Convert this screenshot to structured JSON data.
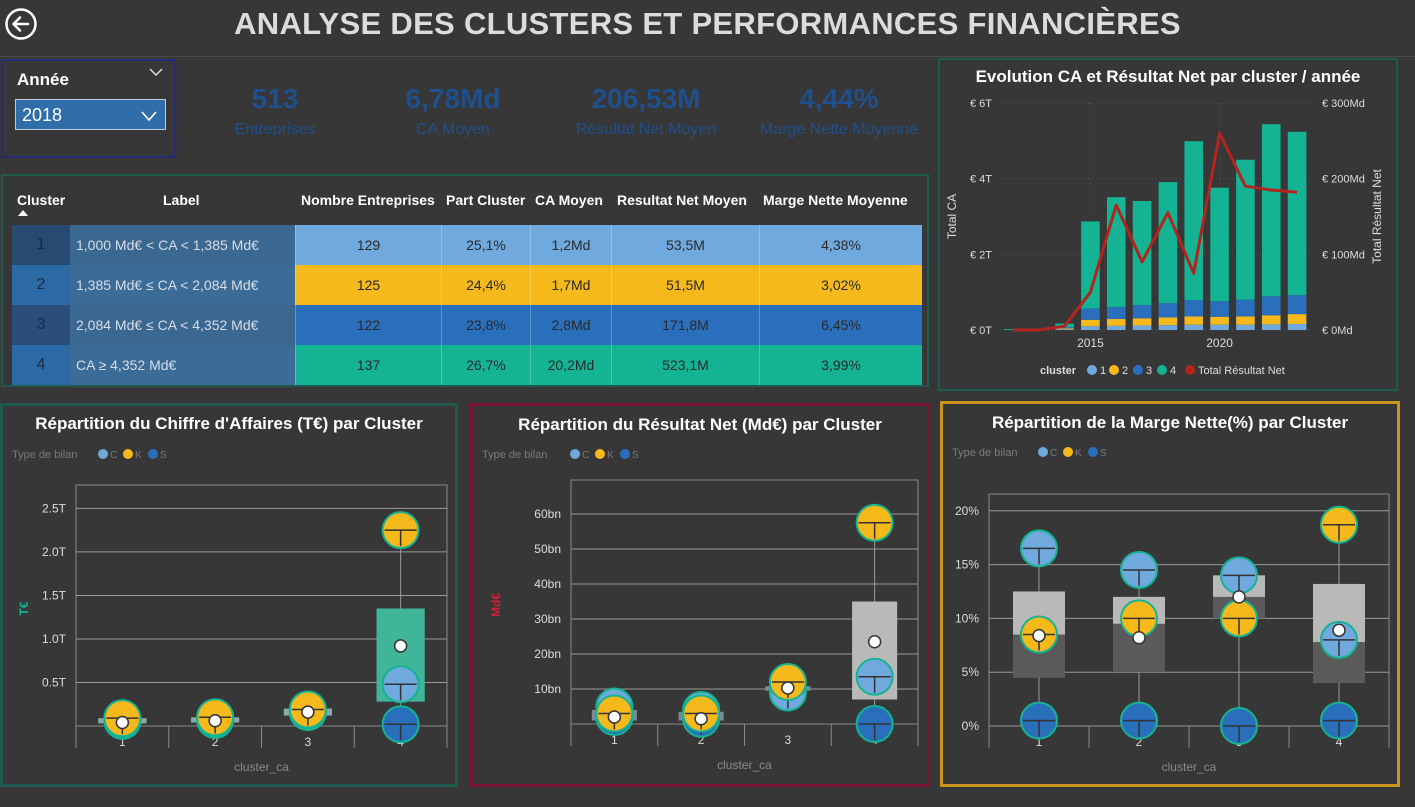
{
  "page": {
    "title": "ANALYSE DES CLUSTERS ET PERFORMANCES FINANCIÈRES"
  },
  "slicer": {
    "label": "Année",
    "value": "2018"
  },
  "kpis": [
    {
      "value": "513",
      "label": "Entreprises"
    },
    {
      "value": "6,78Md",
      "label": "CA Moyen"
    },
    {
      "value": "206,53M",
      "label": "Résultat Net Moyen"
    },
    {
      "value": "4,44%",
      "label": "Marge Nette Moyenne"
    }
  ],
  "table": {
    "headers": [
      "Cluster",
      "Label",
      "Nombre Entreprises",
      "Part Cluster",
      "CA Moyen",
      "Resultat Net Moyen",
      "Marge Nette Moyenne"
    ],
    "rows": [
      {
        "cluster": "1",
        "label": "1,000 Md€ < CA < 1,385 Md€",
        "nombre": "129",
        "part": "25,1%",
        "ca": "1,2Md",
        "rn": "53,5M",
        "marge": "4,38%",
        "color": "#6fa9de"
      },
      {
        "cluster": "2",
        "label": "1,385 Md€ ≤ CA < 2,084 Md€",
        "nombre": "125",
        "part": "24,4%",
        "ca": "1,7Md",
        "rn": "51,5M",
        "marge": "3,02%",
        "color": "#f5b91b"
      },
      {
        "cluster": "3",
        "label": "2,084 Md€ ≤ CA < 4,352 Md€",
        "nombre": "122",
        "part": "23,8%",
        "ca": "2,8Md",
        "rn": "171,8M",
        "marge": "6,45%",
        "color": "#2a6fbc"
      },
      {
        "cluster": "4",
        "label": "CA ≥ 4,352 Md€",
        "nombre": "137",
        "part": "26,7%",
        "ca": "20,2Md",
        "rn": "523,1M",
        "marge": "3,99%",
        "color": "#13b393"
      }
    ]
  },
  "colors": {
    "c1": "#6fa9de",
    "c2": "#f5b91b",
    "c3": "#2a6fbc",
    "c4": "#13b393",
    "rn_line": "#b3241e",
    "border_green": "#1e5a4d",
    "border_red": "#7d1633",
    "border_gold": "#c8961c"
  },
  "chart_data": [
    {
      "type": "bar",
      "title": "Evolution CA et Résultat Net par cluster / année",
      "ylabel": "Total CA",
      "y2label": "Total Résultat Net",
      "ylim": [
        0,
        6
      ],
      "y_ticks": [
        "€ 0T",
        "€ 2T",
        "€ 4T",
        "€ 6T"
      ],
      "y2lim": [
        0,
        300
      ],
      "y2_ticks": [
        "€ 0Md",
        "€ 100Md",
        "€ 200Md",
        "€ 300Md"
      ],
      "x_ticks": [
        "2015",
        "2020"
      ],
      "x": [
        2012,
        2013,
        2014,
        2015,
        2016,
        2017,
        2018,
        2019,
        2020,
        2021,
        2022,
        2023
      ],
      "legend_title": "cluster",
      "series": [
        {
          "name": "1",
          "values": [
            0,
            0,
            0.02,
            0.1,
            0.11,
            0.12,
            0.13,
            0.14,
            0.14,
            0.14,
            0.15,
            0.16
          ]
        },
        {
          "name": "2",
          "values": [
            0,
            0,
            0.02,
            0.17,
            0.18,
            0.19,
            0.2,
            0.22,
            0.21,
            0.22,
            0.24,
            0.26
          ]
        },
        {
          "name": "3",
          "values": [
            0,
            0,
            0.03,
            0.3,
            0.32,
            0.35,
            0.38,
            0.43,
            0.41,
            0.44,
            0.5,
            0.5
          ]
        },
        {
          "name": "4",
          "values": [
            0.02,
            0.03,
            0.1,
            2.3,
            2.9,
            2.75,
            3.2,
            4.2,
            3.0,
            3.7,
            4.55,
            4.32
          ]
        },
        {
          "name": "Total Résultat Net",
          "type": "line",
          "values": [
            0,
            0,
            5,
            50,
            165,
            90,
            155,
            75,
            260,
            190,
            185,
            182
          ]
        }
      ]
    },
    {
      "type": "box",
      "title": "Répartition du Chiffre d'Affaires (T€) par Cluster",
      "legend_title": "Type de bilan",
      "legend": [
        "C",
        "K",
        "S"
      ],
      "xlabel": "cluster_ca",
      "ylabel": "T€",
      "ylim": [
        0,
        2.7
      ],
      "y_ticks": [
        "0.5T",
        "1.0T",
        "1.5T",
        "2.0T",
        "2.5T"
      ],
      "categories": [
        "1",
        "2",
        "3",
        "4"
      ],
      "boxes": [
        {
          "q1": 0.03,
          "q3": 0.09,
          "mean": 0.04,
          "points": {
            "C": 0.08,
            "K": 0.09,
            "S": 0.06
          }
        },
        {
          "q1": 0.04,
          "q3": 0.1,
          "mean": 0.06,
          "points": {
            "C": 0.09,
            "K": 0.1,
            "S": 0.07
          }
        },
        {
          "q1": 0.12,
          "q3": 0.2,
          "mean": 0.16,
          "points": {
            "C": 0.17,
            "K": 0.19,
            "S": 0.16
          }
        },
        {
          "q1": 0.28,
          "q3": 1.35,
          "mean": 0.92,
          "points": {
            "C": 0.48,
            "K": 2.25,
            "S": 0.02
          }
        }
      ]
    },
    {
      "type": "box",
      "title": "Répartition du Résultat Net (Md€) par Cluster",
      "legend_title": "Type de bilan",
      "legend": [
        "C",
        "K",
        "S"
      ],
      "xlabel": "cluster_ca",
      "ylabel": "Md€",
      "ylim": [
        0,
        68
      ],
      "y_ticks": [
        "10bn",
        "20bn",
        "30bn",
        "40bn",
        "50bn",
        "60bn"
      ],
      "categories": [
        "1",
        "2",
        "3",
        "4"
      ],
      "boxes": [
        {
          "q1": 1,
          "q3": 4,
          "mean": 2,
          "points": {
            "C": 5,
            "K": 3,
            "S": 2
          }
        },
        {
          "q1": 1,
          "q3": 3.5,
          "mean": 1.5,
          "points": {
            "C": 4,
            "K": 3,
            "S": 1.5
          }
        },
        {
          "q1": 9.5,
          "q3": 10.8,
          "mean": 10.3,
          "points": {
            "C": 9,
            "K": 12,
            "S": 10
          }
        },
        {
          "q1": 7,
          "q3": 35,
          "mean": 23.5,
          "points": {
            "C": 13.5,
            "K": 57.5,
            "S": 0
          }
        }
      ]
    },
    {
      "type": "box",
      "title": "Répartition de la Marge Nette(%) par Cluster",
      "legend_title": "Type de bilan",
      "legend": [
        "C",
        "K",
        "S"
      ],
      "xlabel": "cluster_ca",
      "ylim": [
        0,
        21
      ],
      "y_ticks": [
        "0%",
        "5%",
        "10%",
        "15%",
        "20%"
      ],
      "categories": [
        "1",
        "2",
        "3",
        "4"
      ],
      "boxes": [
        {
          "q1": 4.5,
          "q3": 12.5,
          "median": 8.5,
          "mean": 8.4,
          "points": {
            "C": 16.5,
            "K": 8.5,
            "S": 0.5
          }
        },
        {
          "q1": 5,
          "q3": 12,
          "median": 9.5,
          "mean": 8.2,
          "points": {
            "C": 14.5,
            "K": 10,
            "S": 0.5
          }
        },
        {
          "q1": 10,
          "q3": 14,
          "median": 12,
          "mean": 12,
          "points": {
            "C": 14,
            "K": 10,
            "S": 0
          }
        },
        {
          "q1": 4,
          "q3": 13.2,
          "median": 7.8,
          "mean": 8.9,
          "points": {
            "C": 8,
            "K": 18.7,
            "S": 0.5
          }
        }
      ]
    }
  ]
}
